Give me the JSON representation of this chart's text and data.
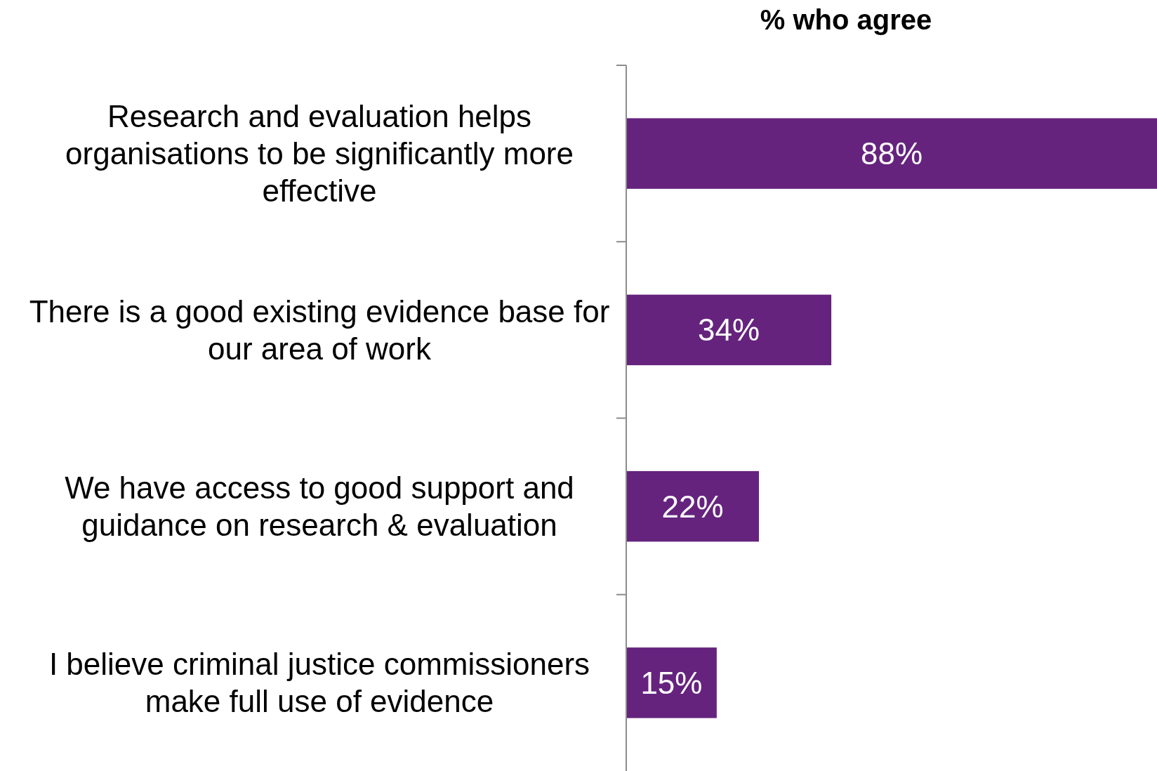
{
  "chart_data": {
    "type": "bar",
    "orientation": "horizontal",
    "title": "% who agree",
    "categories": [
      "Research and evaluation helps organisations to be significantly more effective",
      "There is a good existing evidence base for our area of work",
      "We have access to good support and guidance on research & evaluation",
      "I believe criminal justice commissioners make full use of evidence"
    ],
    "values": [
      88,
      34,
      22,
      15
    ],
    "value_labels": [
      "88%",
      "34%",
      "22%",
      "15%"
    ],
    "color": "#65237e"
  }
}
